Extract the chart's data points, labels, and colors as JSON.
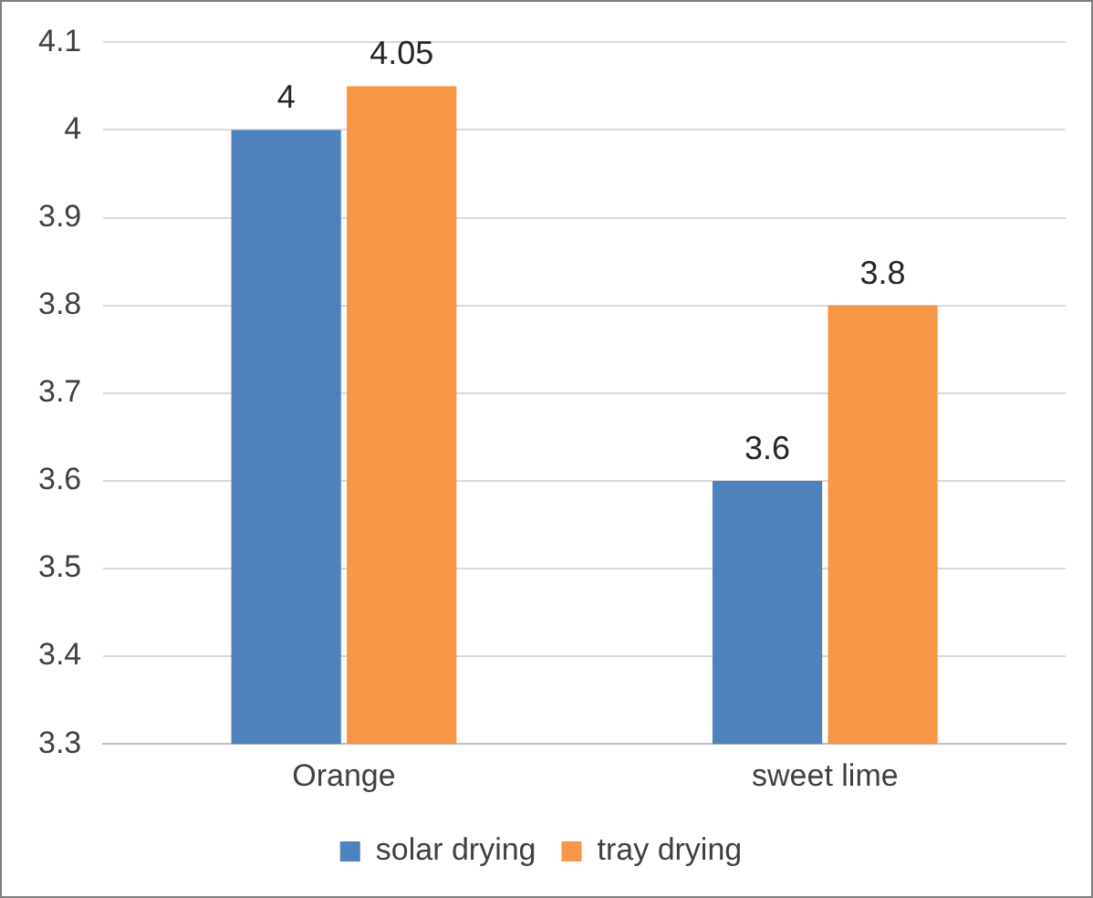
{
  "chart_data": {
    "type": "bar",
    "categories": [
      "Orange",
      "sweet lime"
    ],
    "series": [
      {
        "name": "solar drying",
        "color": "#4f81bd",
        "values": [
          4,
          3.6
        ]
      },
      {
        "name": "tray drying",
        "color": "#f79646",
        "values": [
          4.05,
          3.8
        ]
      }
    ],
    "ylim": [
      3.3,
      4.1
    ],
    "yticks": [
      3.3,
      3.4,
      3.5,
      3.6,
      3.7,
      3.8,
      3.9,
      4,
      4.1
    ],
    "grid": "y",
    "legend": "bottom",
    "data_labels": true
  }
}
